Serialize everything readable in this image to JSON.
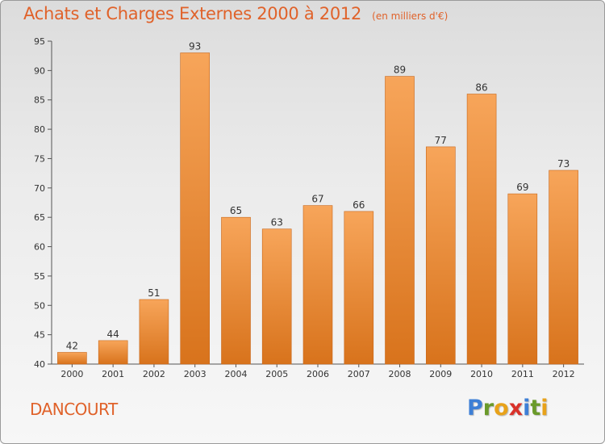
{
  "chart_data": {
    "type": "bar",
    "title": "Achats et Charges Externes 2000 à 2012",
    "subtitle": "(en milliers d'€)",
    "categories": [
      "2000",
      "2001",
      "2002",
      "2003",
      "2004",
      "2005",
      "2006",
      "2007",
      "2008",
      "2009",
      "2010",
      "2011",
      "2012"
    ],
    "values": [
      42,
      44,
      51,
      93,
      65,
      63,
      67,
      66,
      89,
      77,
      86,
      69,
      73
    ],
    "ylim": [
      40,
      95
    ],
    "yticks": [
      40,
      45,
      50,
      55,
      60,
      65,
      70,
      75,
      80,
      85,
      90,
      95
    ],
    "xlabel": "",
    "ylabel": "",
    "grid": false,
    "colors": {
      "bar_light": "#f7a55a",
      "bar_dark": "#d8731c",
      "title": "#e0622a"
    }
  },
  "commune": "DANCOURT",
  "brand": {
    "letters": [
      {
        "char": "P",
        "color": "#3d7fd6"
      },
      {
        "char": "r",
        "color": "#6a9a2a"
      },
      {
        "char": "o",
        "color": "#e8a21a"
      },
      {
        "char": "x",
        "color": "#d9322a"
      },
      {
        "char": "i",
        "color": "#3d7fd6"
      },
      {
        "char": "t",
        "color": "#6a9a2a"
      },
      {
        "char": "i",
        "color": "#e8a21a"
      }
    ]
  }
}
